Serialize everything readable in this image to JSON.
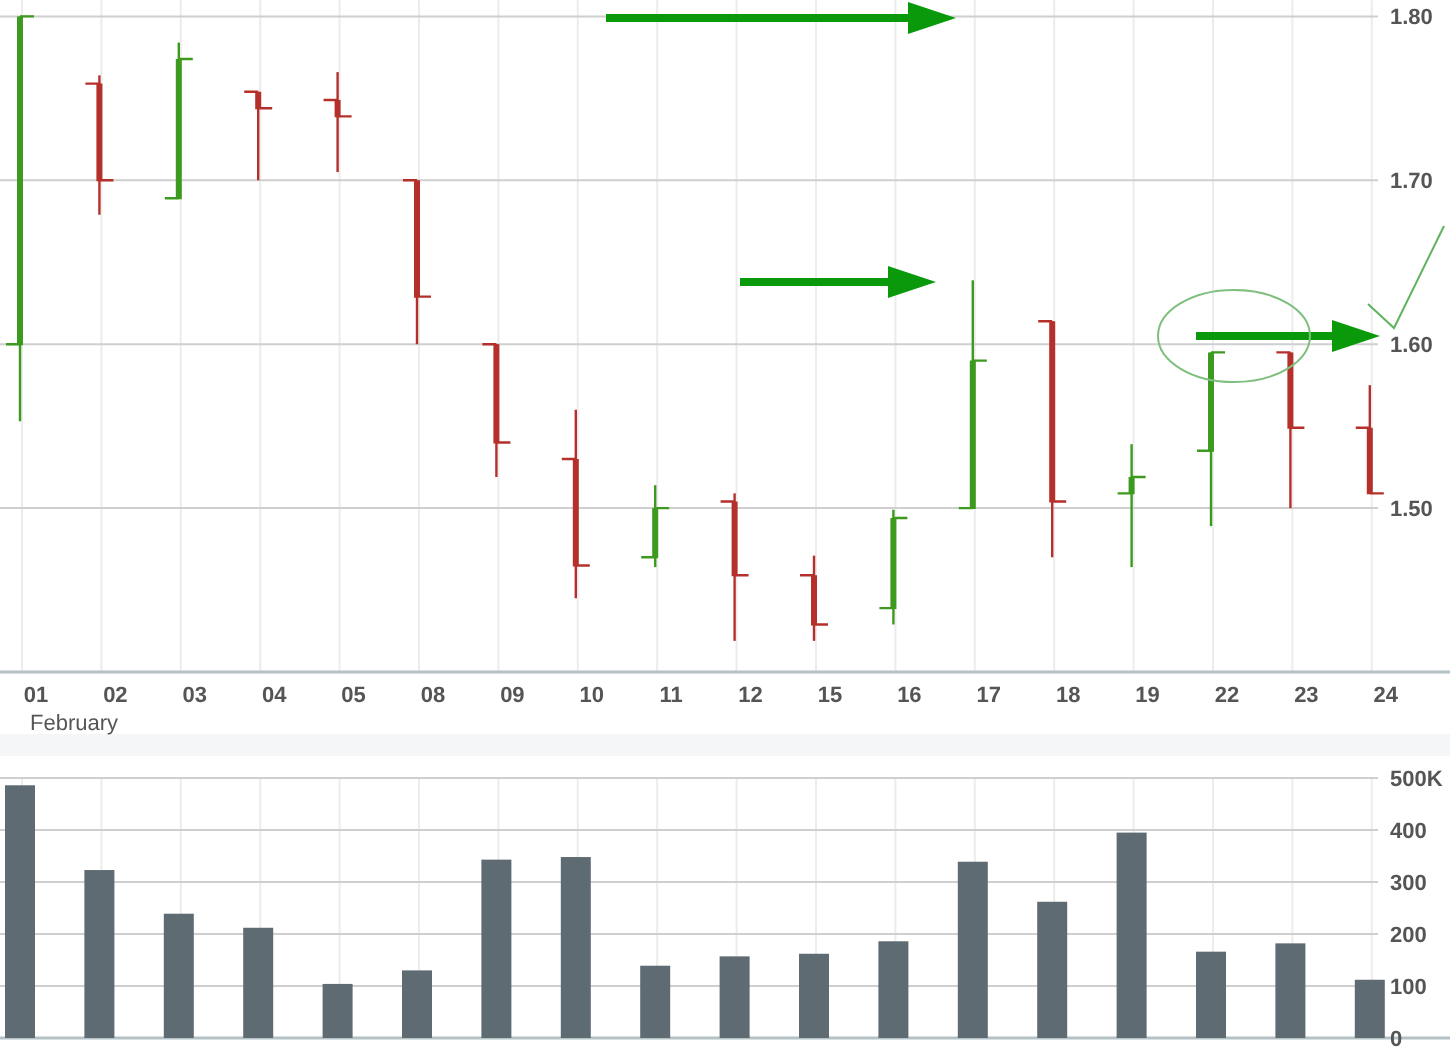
{
  "chart_data": [
    {
      "type": "candlestick",
      "categories": [
        "01",
        "02",
        "03",
        "04",
        "05",
        "08",
        "09",
        "10",
        "11",
        "12",
        "15",
        "16",
        "17",
        "18",
        "19",
        "22",
        "23",
        "24"
      ],
      "ohlc": [
        [
          1.6,
          1.8,
          1.553,
          1.8
        ],
        [
          1.759,
          1.764,
          1.679,
          1.7
        ],
        [
          1.689,
          1.784,
          1.689,
          1.774
        ],
        [
          1.754,
          1.754,
          1.7,
          1.744
        ],
        [
          1.749,
          1.766,
          1.705,
          1.739
        ],
        [
          1.7,
          1.7,
          1.6,
          1.629
        ],
        [
          1.6,
          1.6,
          1.519,
          1.54
        ],
        [
          1.53,
          1.56,
          1.445,
          1.465
        ],
        [
          1.47,
          1.514,
          1.464,
          1.5
        ],
        [
          1.504,
          1.509,
          1.419,
          1.459
        ],
        [
          1.459,
          1.471,
          1.419,
          1.429
        ],
        [
          1.439,
          1.499,
          1.429,
          1.494
        ],
        [
          1.5,
          1.639,
          1.5,
          1.59
        ],
        [
          1.614,
          1.614,
          1.47,
          1.504
        ],
        [
          1.509,
          1.539,
          1.464,
          1.519
        ],
        [
          1.535,
          1.595,
          1.489,
          1.595
        ],
        [
          1.595,
          1.595,
          1.5,
          1.549
        ],
        [
          1.549,
          1.575,
          1.509,
          1.509
        ]
      ],
      "colors": [
        "#3c9a1e",
        "#b5302a",
        "#3c9a1e",
        "#b5302a",
        "#b5302a",
        "#b5302a",
        "#b5302a",
        "#b5302a",
        "#3c9a1e",
        "#b5302a",
        "#b5302a",
        "#3c9a1e",
        "#3c9a1e",
        "#b5302a",
        "#3c9a1e",
        "#3c9a1e",
        "#b5302a",
        "#b5302a"
      ],
      "ylim": [
        1.4,
        1.81
      ],
      "yticks": [
        {
          "value": 1.5,
          "label": "1.50"
        },
        {
          "value": 1.6,
          "label": "1.60"
        },
        {
          "value": 1.7,
          "label": "1.70"
        },
        {
          "value": 1.8,
          "label": "1.80"
        }
      ],
      "grid": true,
      "annotations": [
        "February"
      ]
    },
    {
      "type": "bar",
      "categories": [
        "01",
        "02",
        "03",
        "04",
        "05",
        "08",
        "09",
        "10",
        "11",
        "12",
        "15",
        "16",
        "17",
        "18",
        "19",
        "22",
        "23",
        "24"
      ],
      "values": [
        486,
        323,
        239,
        212,
        104,
        130,
        343,
        348,
        139,
        157,
        162,
        186,
        339,
        262,
        395,
        166,
        182,
        112
      ],
      "color": "#5f6b73",
      "ylim": [
        0,
        500
      ],
      "yticks": [
        0,
        100,
        200,
        300,
        400,
        {
          "value": 500,
          "label": "500K"
        }
      ],
      "grid": true,
      "tick_labels": "y"
    }
  ]
}
